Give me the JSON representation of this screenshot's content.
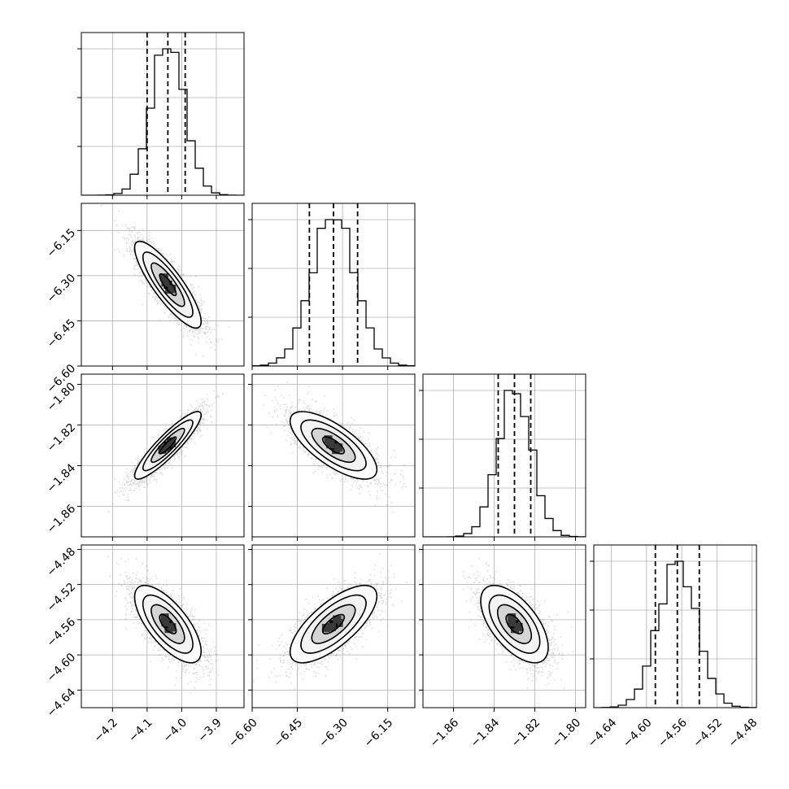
{
  "chart_data": {
    "type": "corner",
    "title": "",
    "grid": true,
    "colors": {
      "points": "#888888",
      "contour": "#000000",
      "hist": "#000000",
      "grid": "#b0b0b0",
      "quantile": "#000000"
    },
    "parameters": [
      {
        "label": "",
        "center": -4.04,
        "sigma": 0.048,
        "quantiles": [
          -4.1,
          -4.04,
          -3.99
        ],
        "range": [
          -4.29,
          -3.82
        ],
        "ticks": [
          -4.2,
          -4.1,
          -4.0,
          -3.9
        ],
        "tick_labels": [
          "−4.2",
          "−4.1",
          "−4.0",
          "−3.9"
        ]
      },
      {
        "label": "",
        "center": -6.33,
        "sigma": 0.072,
        "quantiles": [
          -6.41,
          -6.33,
          -6.25
        ],
        "range": [
          -6.6,
          -6.06
        ],
        "ticks": [
          -6.6,
          -6.45,
          -6.3,
          -6.15
        ],
        "tick_labels": [
          "−6.60",
          "−6.45",
          "−6.30",
          "−6.15"
        ]
      },
      {
        "label": "",
        "center": -1.83,
        "sigma": 0.0083,
        "quantiles": [
          -1.838,
          -1.83,
          -1.822
        ],
        "range": [
          -1.875,
          -1.795
        ],
        "ticks": [
          -1.86,
          -1.84,
          -1.82,
          -1.8
        ],
        "tick_labels": [
          "−1.86",
          "−1.84",
          "−1.82",
          "−1.80"
        ]
      },
      {
        "label": "",
        "center": -4.565,
        "sigma": 0.022,
        "quantiles": [
          -4.59,
          -4.565,
          -4.54
        ],
        "range": [
          -4.66,
          -4.475
        ],
        "ticks": [
          -4.64,
          -4.6,
          -4.56,
          -4.52,
          -4.48
        ],
        "tick_labels": [
          "−4.64",
          "−4.60",
          "−4.56",
          "−4.52",
          "−4.48"
        ]
      }
    ],
    "correlations": [
      {
        "row": 1,
        "col": 0,
        "rho": -0.85
      },
      {
        "row": 2,
        "col": 0,
        "rho": 0.9
      },
      {
        "row": 2,
        "col": 1,
        "rho": -0.72
      },
      {
        "row": 3,
        "col": 0,
        "rho": -0.7
      },
      {
        "row": 3,
        "col": 1,
        "rho": 0.72
      },
      {
        "row": 3,
        "col": 2,
        "rho": -0.6
      }
    ],
    "contour_levels_sigma": [
      0.5,
      1.0,
      1.5,
      2.0
    ],
    "hist_bins": 20,
    "n_samples": 3000
  }
}
